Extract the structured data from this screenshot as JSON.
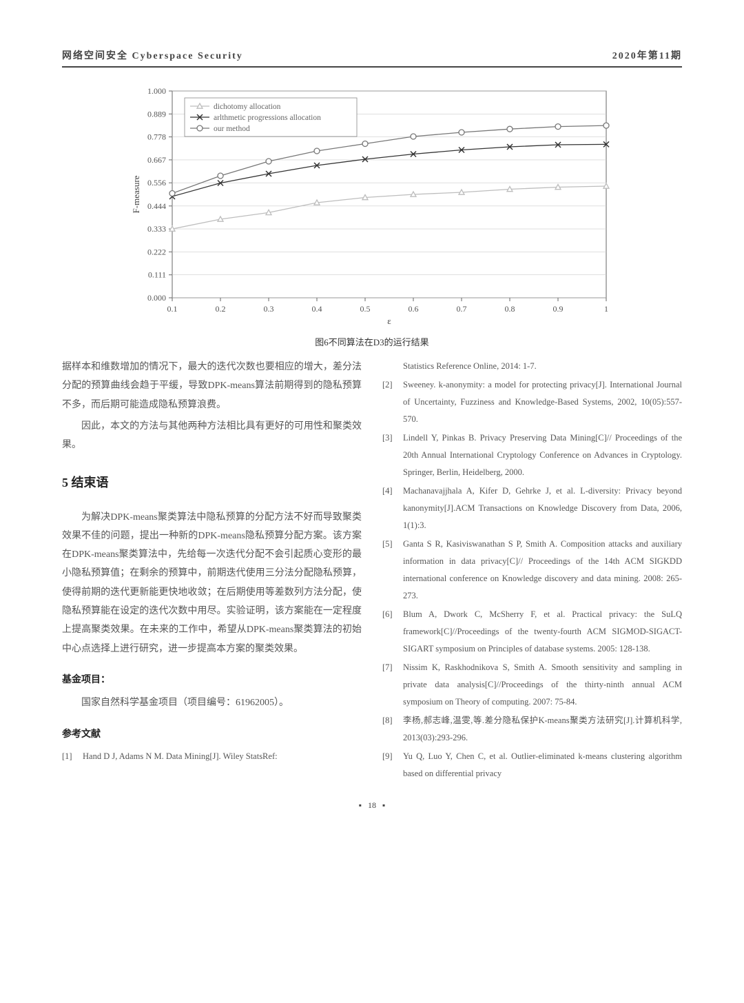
{
  "header": {
    "left": "网络空间安全 Cyberspace Security",
    "right": "2020年第11期"
  },
  "chart": {
    "type": "line",
    "ylabel": "F-measure",
    "xlabel": "ε",
    "caption": "图6不同算法在D3的运行结果",
    "xlim": [
      0.1,
      1.0
    ],
    "ylim": [
      0.0,
      1.0
    ],
    "xticks": [
      0.1,
      0.2,
      0.3,
      0.4,
      0.5,
      0.6,
      0.7,
      0.8,
      0.9,
      1.0
    ],
    "xtick_labels": [
      "0.1",
      "0.2",
      "0.3",
      "0.4",
      "0.5",
      "0.6",
      "0.7",
      "0.8",
      "0.9",
      "1"
    ],
    "yticks": [
      0.0,
      0.111,
      0.222,
      0.333,
      0.444,
      0.556,
      0.667,
      0.778,
      0.889,
      1.0
    ],
    "ytick_labels": [
      "0.000",
      "0.111",
      "0.222",
      "0.333",
      "0.444",
      "0.556",
      "0.667",
      "0.778",
      "0.889",
      "1.000"
    ],
    "background_color": "#ffffff",
    "grid_color": "#cccccc",
    "axis_color": "#666666",
    "line_width": 1.3,
    "marker_size": 4,
    "legend": {
      "position": "top-left-inside",
      "border_color": "#888888",
      "items": [
        {
          "label": "dichotomy allocation",
          "marker": "triangle",
          "color": "#bdbdbd"
        },
        {
          "label": "arlthmetic progressions allocation",
          "marker": "x",
          "color": "#333333"
        },
        {
          "label": "our method",
          "marker": "circle",
          "color": "#777777"
        }
      ]
    },
    "series": [
      {
        "name": "dichotomy allocation",
        "color": "#bdbdbd",
        "marker": "triangle",
        "x": [
          0.1,
          0.2,
          0.3,
          0.4,
          0.5,
          0.6,
          0.7,
          0.8,
          0.9,
          1.0
        ],
        "y": [
          0.333,
          0.38,
          0.412,
          0.46,
          0.485,
          0.5,
          0.51,
          0.525,
          0.535,
          0.54
        ]
      },
      {
        "name": "arlthmetic progressions allocation",
        "color": "#333333",
        "marker": "x",
        "x": [
          0.1,
          0.2,
          0.3,
          0.4,
          0.5,
          0.6,
          0.7,
          0.8,
          0.9,
          1.0
        ],
        "y": [
          0.49,
          0.555,
          0.6,
          0.64,
          0.67,
          0.695,
          0.715,
          0.73,
          0.74,
          0.742
        ]
      },
      {
        "name": "our method",
        "color": "#777777",
        "marker": "circle",
        "x": [
          0.1,
          0.2,
          0.3,
          0.4,
          0.5,
          0.6,
          0.7,
          0.8,
          0.9,
          1.0
        ],
        "y": [
          0.505,
          0.59,
          0.66,
          0.71,
          0.745,
          0.78,
          0.8,
          0.816,
          0.828,
          0.833
        ]
      }
    ]
  },
  "left_col": {
    "para1": "据样本和维数增加的情况下，最大的迭代次数也要相应的增大，差分法分配的预算曲线会趋于平缓，导致DPK-means算法前期得到的隐私预算不多，而后期可能造成隐私预算浪费。",
    "para2": "因此，本文的方法与其他两种方法相比具有更好的可用性和聚类效果。",
    "heading5": "5 结束语",
    "para3": "为解决DPK-means聚类算法中隐私预算的分配方法不好而导致聚类效果不佳的问题，提出一种新的DPK-means隐私预算分配方案。该方案在DPK-means聚类算法中，先给每一次迭代分配不会引起质心变形的最小隐私预算值；在剩余的预算中，前期迭代使用三分法分配隐私预算，使得前期的迭代更新能更快地收敛；在后期使用等差数列方法分配，使隐私预算能在设定的迭代次数中用尽。实验证明，该方案能在一定程度上提高聚类效果。在未来的工作中，希望从DPK-means聚类算法的初始中心点选择上进行研究，进一步提高本方案的聚类效果。",
    "fund_label": "基金项目：",
    "fund_text": "国家自然科学基金项目（项目编号：61962005）。",
    "ref_label": "参考文献",
    "ref1_num": "[1]",
    "ref1_text": "Hand D J, Adams N M. Data Mining[J]. Wiley StatsRef:"
  },
  "right_col": {
    "ref1_cont": "Statistics Reference Online, 2014: 1-7.",
    "refs": [
      {
        "num": "[2]",
        "text": "Sweeney. k-anonymity: a model for protecting privacy[J]. International Journal of Uncertainty, Fuzziness and Knowledge-Based Systems, 2002, 10(05):557-570."
      },
      {
        "num": "[3]",
        "text": "Lindell Y, Pinkas B. Privacy Preserving Data Mining[C]// Proceedings of the 20th Annual International Cryptology Conference on Advances in Cryptology. Springer, Berlin, Heidelberg, 2000."
      },
      {
        "num": "[4]",
        "text": "Machanavajjhala A, Kifer D, Gehrke J, et al. L-diversity: Privacy beyond kanonymity[J].ACM Transactions on Knowledge Discovery from Data, 2006, 1(1):3."
      },
      {
        "num": "[5]",
        "text": "Ganta S R, Kasiviswanathan S P, Smith A. Composition attacks and auxiliary information in data privacy[C]// Proceedings of the 14th ACM SIGKDD international conference on Knowledge discovery and data mining. 2008: 265-273."
      },
      {
        "num": "[6]",
        "text": "Blum A, Dwork C, McSherry F, et al. Practical privacy: the SuLQ framework[C]//Proceedings of the twenty-fourth ACM SIGMOD-SIGACT-SIGART symposium on Principles of database systems. 2005: 128-138."
      },
      {
        "num": "[7]",
        "text": "Nissim K, Raskhodnikova S, Smith A. Smooth sensitivity and sampling in private data analysis[C]//Proceedings of the thirty-ninth annual ACM symposium on Theory of computing. 2007: 75-84."
      },
      {
        "num": "[8]",
        "text": "李杨,郝志峰,温雯,等.差分隐私保护K-means聚类方法研究[J].计算机科学, 2013(03):293-296."
      },
      {
        "num": "[9]",
        "text": "Yu Q, Luo Y, Chen C, et al. Outlier-eliminated k-means clustering algorithm based on differential privacy"
      }
    ]
  },
  "footer": {
    "page": "18"
  }
}
